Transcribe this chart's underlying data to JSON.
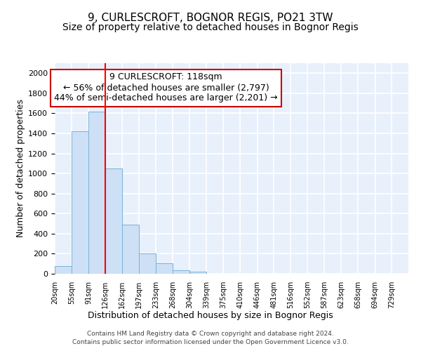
{
  "title1": "9, CURLESCROFT, BOGNOR REGIS, PO21 3TW",
  "title2": "Size of property relative to detached houses in Bognor Regis",
  "xlabel": "Distribution of detached houses by size in Bognor Regis",
  "ylabel": "Number of detached properties",
  "annotation_title": "9 CURLESCROFT: 118sqm",
  "annotation_line1": "← 56% of detached houses are smaller (2,797)",
  "annotation_line2": "44% of semi-detached houses are larger (2,201) →",
  "footnote1": "Contains HM Land Registry data © Crown copyright and database right 2024.",
  "footnote2": "Contains public sector information licensed under the Open Government Licence v3.0.",
  "bins": [
    20,
    55,
    91,
    126,
    162,
    197,
    233,
    268,
    304,
    339,
    375,
    410,
    446,
    481,
    516,
    552,
    587,
    623,
    658,
    694,
    729
  ],
  "bar_heights": [
    80,
    1420,
    1620,
    1050,
    490,
    200,
    105,
    35,
    20,
    0,
    0,
    0,
    0,
    0,
    0,
    0,
    0,
    0,
    0,
    0
  ],
  "bar_color": "#cde0f5",
  "bar_edge_color": "#7ab3d9",
  "red_line_x": 126,
  "ylim": [
    0,
    2100
  ],
  "yticks": [
    0,
    200,
    400,
    600,
    800,
    1000,
    1200,
    1400,
    1600,
    1800,
    2000
  ],
  "background_color": "#e8f0fb",
  "grid_color": "#ffffff",
  "title1_fontsize": 11,
  "title2_fontsize": 10,
  "xlabel_fontsize": 9,
  "ylabel_fontsize": 9,
  "annotation_box_color": "#ffffff",
  "annotation_box_edge": "#cc0000",
  "annotation_fontsize": 9
}
